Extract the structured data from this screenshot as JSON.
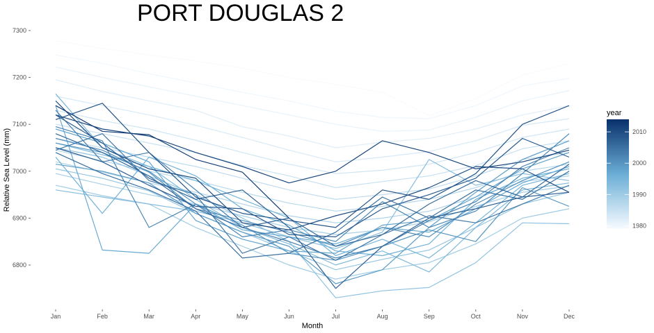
{
  "chart_data": {
    "type": "line",
    "title": "PORT DOUGLAS 2",
    "xlabel": "Month",
    "ylabel": "Relative Sea Level (mm)",
    "categories": [
      "Jan",
      "Feb",
      "Mar",
      "Apr",
      "May",
      "Jun",
      "Jul",
      "Aug",
      "Sep",
      "Oct",
      "Nov",
      "Dec"
    ],
    "y_ticks": [
      6800,
      6900,
      7000,
      7100,
      7200,
      7300
    ],
    "ylim": [
      6715,
      7320
    ],
    "grid": false,
    "legend": {
      "title": "year",
      "position": "right",
      "type": "colorbar",
      "range": [
        1979,
        2014
      ],
      "ticks": [
        1980,
        1990,
        2000,
        2010
      ],
      "color_low": "#f7fbff",
      "color_high": "#08306b"
    },
    "series": [
      {
        "year": 1979,
        "values": [
          7278,
          7262,
          7248,
          7235,
          7220,
          7200,
          7185,
          7168,
          7118,
          7155,
          7205,
          7230
        ]
      },
      {
        "year": 1980,
        "values": [
          7248,
          7230,
          7208,
          7188,
          7168,
          7150,
          7128,
          7115,
          7112,
          7140,
          7182,
          7198
        ]
      },
      {
        "year": 1981,
        "values": [
          7222,
          7200,
          7180,
          7160,
          7140,
          7120,
          7100,
          7085,
          7088,
          7115,
          7150,
          7172
        ]
      },
      {
        "year": 1982,
        "values": [
          7195,
          7170,
          7150,
          7130,
          7095,
          7075,
          7050,
          7062,
          7070,
          7090,
          7120,
          7140
        ]
      },
      {
        "year": 1983,
        "values": [
          7160,
          7140,
          7120,
          7098,
          7072,
          7045,
          7020,
          7030,
          7042,
          7065,
          7098,
          7112
        ]
      },
      {
        "year": 1984,
        "values": [
          7130,
          7108,
          7090,
          7066,
          7040,
          7015,
          6995,
          7002,
          7015,
          7040,
          7072,
          7090
        ]
      },
      {
        "year": 1985,
        "values": [
          7100,
          7080,
          7060,
          7040,
          7012,
          6990,
          6965,
          6978,
          6990,
          7012,
          7048,
          7065
        ]
      },
      {
        "year": 1986,
        "values": [
          7070,
          7050,
          7030,
          7010,
          6985,
          6960,
          6940,
          6950,
          6962,
          6990,
          7025,
          7040
        ]
      },
      {
        "year": 1987,
        "values": [
          7045,
          7022,
          7000,
          6980,
          6955,
          6932,
          6915,
          6925,
          6940,
          6965,
          7000,
          7015
        ]
      },
      {
        "year": 1988,
        "values": [
          7020,
          6998,
          6975,
          6955,
          6930,
          6905,
          6890,
          6900,
          6915,
          6945,
          6978,
          6990
        ]
      },
      {
        "year": 1989,
        "values": [
          6995,
          6972,
          6950,
          6930,
          6905,
          6880,
          6865,
          6875,
          6892,
          6925,
          6955,
          6968
        ]
      },
      {
        "year": 1990,
        "values": [
          6970,
          6948,
          6930,
          6880,
          6840,
          6800,
          6770,
          6790,
          6805,
          6845,
          6900,
          6920
        ]
      },
      {
        "year": 1991,
        "values": [
          7005,
          6985,
          6958,
          6910,
          6870,
          6830,
          6790,
          6812,
          6832,
          6880,
          6930,
          6955
        ]
      },
      {
        "year": 1992,
        "values": [
          7050,
          7030,
          6990,
          6950,
          6900,
          6850,
          6730,
          6745,
          6752,
          6805,
          6890,
          6888
        ]
      },
      {
        "year": 1993,
        "values": [
          6960,
          6945,
          6930,
          6915,
          6890,
          6860,
          6835,
          6870,
          7025,
          6970,
          6995,
          6980
        ]
      },
      {
        "year": 1994,
        "values": [
          7060,
          7035,
          7010,
          6940,
          6880,
          6845,
          6800,
          6830,
          6785,
          6880,
          6960,
          6975
        ]
      },
      {
        "year": 1995,
        "values": [
          7165,
          7050,
          7010,
          6980,
          6940,
          6900,
          6820,
          6855,
          6815,
          6890,
          6970,
          6995
        ]
      },
      {
        "year": 1996,
        "values": [
          7030,
          6910,
          7030,
          6990,
          6920,
          6885,
          6830,
          6820,
          6845,
          6940,
          6985,
          7005
        ]
      },
      {
        "year": 1997,
        "values": [
          7140,
          6832,
          6825,
          6930,
          6875,
          6860,
          6845,
          6880,
          6870,
          6920,
          6975,
          7010
        ]
      },
      {
        "year": 1998,
        "values": [
          7090,
          7060,
          7020,
          6895,
          6855,
          6830,
          6825,
          6885,
          6895,
          6945,
          7005,
          7040
        ]
      },
      {
        "year": 1999,
        "values": [
          7015,
          7000,
          6975,
          6910,
          6870,
          6840,
          6760,
          6790,
          6880,
          6955,
          7025,
          7065
        ]
      },
      {
        "year": 2000,
        "values": [
          7060,
          7040,
          7000,
          6930,
          6885,
          6825,
          6810,
          6840,
          6875,
          6850,
          6965,
          6925
        ]
      },
      {
        "year": 2001,
        "values": [
          7070,
          7045,
          6998,
          6920,
          6895,
          6870,
          6840,
          6880,
          6860,
          6930,
          6980,
          7020
        ]
      },
      {
        "year": 2002,
        "values": [
          7095,
          7065,
          6880,
          6930,
          6860,
          6875,
          6850,
          6935,
          6880,
          6915,
          6995,
          7080
        ]
      },
      {
        "year": 2003,
        "values": [
          7130,
          7020,
          7040,
          6960,
          6880,
          6850,
          6815,
          6840,
          6895,
          6935,
          7010,
          7050
        ]
      },
      {
        "year": 2004,
        "values": [
          7045,
          7080,
          6980,
          6950,
          6825,
          6860,
          6810,
          6865,
          6905,
          6890,
          6930,
          6970
        ]
      },
      {
        "year": 2005,
        "values": [
          7040,
          6995,
          6960,
          6915,
          6815,
          6825,
          6870,
          6945,
          6900,
          6960,
          6940,
          7000
        ]
      },
      {
        "year": 2006,
        "values": [
          7080,
          7040,
          6990,
          6920,
          6880,
          6900,
          6840,
          6865,
          6930,
          6980,
          6945,
          7015
        ]
      },
      {
        "year": 2007,
        "values": [
          7120,
          7060,
          6985,
          6940,
          6960,
          6880,
          6750,
          6840,
          6900,
          6920,
          6945,
          6955
        ]
      },
      {
        "year": 2008,
        "values": [
          7050,
          7020,
          6970,
          6925,
          6920,
          6865,
          6860,
          6920,
          6950,
          6985,
          7070,
          7030
        ]
      },
      {
        "year": 2009,
        "values": [
          7110,
          7145,
          7040,
          6945,
          6910,
          6895,
          6880,
          6960,
          6940,
          6995,
          7100,
          7140
        ]
      },
      {
        "year": 2010,
        "values": [
          7150,
          7050,
          7005,
          6985,
          6890,
          6875,
          6905,
          6930,
          6965,
          7010,
          7005,
          6955
        ]
      },
      {
        "year": 2011,
        "values": [
          7120,
          7090,
          7075,
          7040,
          7010,
          6975,
          7000,
          7065,
          7040,
          7005,
          7020,
          7045
        ]
      },
      {
        "year": 2012,
        "values": [
          7140,
          7085,
          7078,
          7025,
          6998,
          6900,
          null,
          null,
          null,
          null,
          null,
          null
        ]
      }
    ]
  }
}
